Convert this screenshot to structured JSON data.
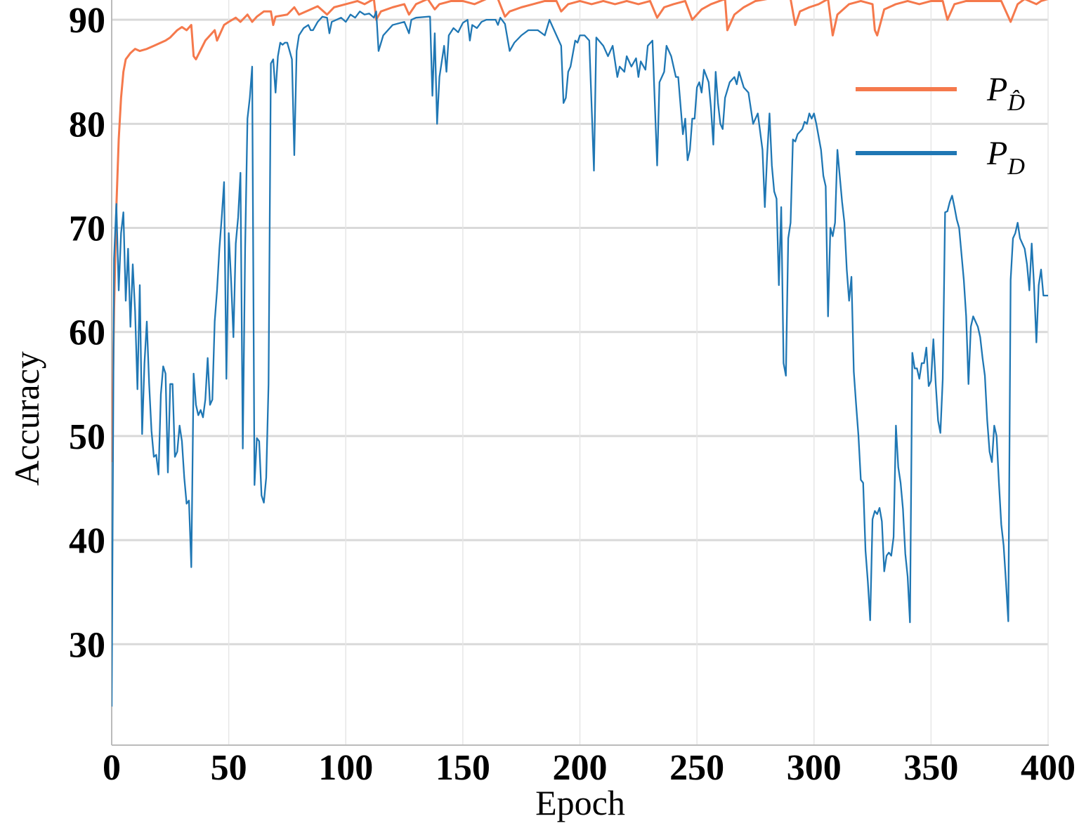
{
  "chart_data": {
    "type": "line",
    "x_label": "Epoch",
    "y_label": "Accuracy",
    "xlim": [
      0,
      400
    ],
    "ylim": [
      20.3,
      91.9
    ],
    "xticks": [
      0,
      50,
      100,
      150,
      200,
      250,
      300,
      350,
      400
    ],
    "yticks": [
      30,
      40,
      50,
      60,
      70,
      80,
      90
    ],
    "grid": true,
    "legend": "upper right",
    "series": [
      {
        "name": "PD̂",
        "color": "#f5794c",
        "x": [
          0,
          1,
          2,
          3,
          4,
          5,
          6,
          8,
          10,
          12,
          15,
          18,
          20,
          23,
          25,
          28,
          30,
          32,
          34,
          35,
          36,
          40,
          44,
          45,
          48,
          50,
          53,
          55,
          58,
          60,
          62,
          65,
          68,
          69,
          70,
          75,
          78,
          80,
          85,
          88,
          92,
          95,
          100,
          105,
          108,
          112,
          113,
          115,
          120,
          125,
          127,
          130,
          135,
          138,
          140,
          145,
          150,
          155,
          160,
          165,
          168,
          170,
          175,
          180,
          185,
          190,
          192,
          195,
          200,
          205,
          210,
          215,
          220,
          225,
          230,
          233,
          236,
          240,
          245,
          248,
          252,
          256,
          262,
          263,
          266,
          270,
          275,
          280,
          285,
          290,
          292,
          294,
          298,
          302,
          306,
          308,
          310,
          315,
          320,
          325,
          326,
          327,
          330,
          335,
          340,
          345,
          350,
          355,
          357,
          360,
          365,
          370,
          375,
          380,
          384,
          387,
          390,
          395,
          397,
          400
        ],
        "values": [
          47.5,
          62,
          72,
          78.5,
          82.5,
          85,
          86.2,
          86.8,
          87.2,
          87,
          87.2,
          87.5,
          87.7,
          88,
          88.3,
          89,
          89.3,
          89,
          89.5,
          86.5,
          86.2,
          88,
          89,
          88,
          89.5,
          89.8,
          90.2,
          89.8,
          90.5,
          89.8,
          90.3,
          90.8,
          90.8,
          89.5,
          90.3,
          90.5,
          91.2,
          90.5,
          91,
          91.3,
          90.5,
          91.2,
          91.5,
          91.8,
          91.5,
          92,
          90,
          90.8,
          91.2,
          91.5,
          90.5,
          91.5,
          92,
          91,
          91.5,
          91.8,
          91.8,
          91.5,
          92,
          92,
          90.3,
          90.8,
          91.2,
          91.5,
          91.8,
          91.8,
          90.8,
          91.5,
          91.8,
          91.5,
          91.8,
          91.5,
          91.8,
          91.5,
          91.8,
          90.2,
          91.2,
          91.5,
          91.8,
          90,
          91,
          91.5,
          92,
          89,
          90.5,
          91.2,
          91.8,
          92,
          92,
          92,
          89.5,
          90.8,
          91.2,
          91.5,
          92,
          88.5,
          90.5,
          91.5,
          91.8,
          91.5,
          89,
          88.5,
          91,
          91.5,
          91.8,
          91.5,
          91.8,
          91.8,
          90,
          91.5,
          91.8,
          91.8,
          91.8,
          91.8,
          89.8,
          91.5,
          92,
          91.5,
          91.8,
          92
        ]
      },
      {
        "name": "PD",
        "color": "#1f77b4",
        "x": [
          0,
          1,
          2,
          3,
          4,
          5,
          6,
          7,
          8,
          9,
          10,
          11,
          12,
          13,
          14,
          15,
          16,
          17,
          18,
          19,
          20,
          21,
          22,
          23,
          24,
          25,
          26,
          27,
          28,
          29,
          30,
          31,
          32,
          33,
          34,
          35,
          36,
          37,
          38,
          39,
          40,
          41,
          42,
          43,
          44,
          45,
          46,
          47,
          48,
          49,
          50,
          51,
          52,
          53,
          54,
          55,
          56,
          57,
          58,
          59,
          60,
          61,
          62,
          63,
          64,
          65,
          66,
          67,
          68,
          69,
          70,
          71,
          72,
          73,
          74,
          75,
          76,
          77,
          78,
          79,
          80,
          82,
          84,
          85,
          86,
          88,
          90,
          92,
          93,
          94,
          96,
          98,
          100,
          102,
          104,
          106,
          108,
          110,
          112,
          113,
          114,
          116,
          120,
          125,
          127,
          128,
          130,
          135,
          136,
          137,
          138,
          139,
          140,
          142,
          143,
          144,
          146,
          148,
          150,
          152,
          153,
          154,
          156,
          158,
          160,
          162,
          164,
          165,
          166,
          168,
          170,
          172,
          175,
          178,
          182,
          185,
          187,
          190,
          192,
          193,
          194,
          195,
          196,
          198,
          199,
          200,
          202,
          204,
          206,
          207,
          210,
          212,
          214,
          216,
          217,
          219,
          220,
          222,
          224,
          225,
          226,
          228,
          229,
          231,
          233,
          234,
          236,
          237,
          239,
          241,
          242,
          244,
          245,
          246,
          247,
          248,
          249,
          250,
          251,
          252,
          253,
          255,
          256,
          257,
          258,
          259,
          260,
          261,
          262,
          264,
          266,
          267,
          268,
          270,
          272,
          274,
          276,
          278,
          279,
          280,
          281,
          282,
          283,
          284,
          285,
          286,
          287,
          288,
          289,
          290,
          291,
          292,
          293,
          295,
          296,
          297,
          298,
          299,
          300,
          301,
          303,
          304,
          305,
          306,
          307,
          308,
          309,
          310,
          311,
          312,
          313,
          314,
          315,
          316,
          317,
          318,
          319,
          320,
          321,
          322,
          323,
          324,
          325,
          326,
          327,
          328,
          329,
          330,
          331,
          332,
          333,
          334,
          335,
          336,
          337,
          338,
          339,
          340,
          341,
          342,
          343,
          344,
          345,
          346,
          347,
          348,
          349,
          350,
          351,
          352,
          353,
          354,
          355,
          356,
          357,
          358,
          359,
          360,
          361,
          362,
          363,
          364,
          365,
          366,
          367,
          368,
          369,
          370,
          371,
          372,
          373,
          374,
          375,
          376,
          377,
          378,
          379,
          380,
          381,
          382,
          383,
          384,
          385,
          386,
          387,
          388,
          389,
          390,
          391,
          392,
          393,
          394,
          395,
          396,
          397,
          398,
          400
        ],
        "values": [
          24,
          67,
          72.3,
          64,
          69.5,
          71.5,
          63,
          68,
          60.5,
          66.5,
          62,
          54.5,
          64.5,
          50.2,
          57,
          61,
          55,
          50.5,
          48,
          48.2,
          46.3,
          54,
          56.7,
          56,
          46.5,
          55,
          55,
          48,
          48.5,
          51,
          49.5,
          46,
          43.5,
          43.8,
          37.4,
          56,
          53,
          52,
          52.5,
          51.8,
          53.5,
          57.5,
          53,
          53.5,
          61,
          64,
          68,
          71,
          74.4,
          55.5,
          69.5,
          65,
          59.5,
          68.5,
          71,
          75.3,
          48.8,
          68,
          80.5,
          82.5,
          85.5,
          45.3,
          49.8,
          49.5,
          44.3,
          43.6,
          46,
          55,
          85.8,
          86.2,
          83,
          86.5,
          87.8,
          87.6,
          87.8,
          87.8,
          87,
          86.2,
          77,
          87,
          88.5,
          89.2,
          89.5,
          89,
          89,
          89.8,
          90.3,
          90.2,
          88.7,
          89.8,
          90,
          90.2,
          89.8,
          90.5,
          90.2,
          90.8,
          90.5,
          90.6,
          90.2,
          90.8,
          87,
          88.5,
          89.5,
          89.8,
          88.7,
          90,
          90.2,
          90.3,
          90.3,
          82.7,
          88.7,
          80,
          84.5,
          87.5,
          85,
          88.5,
          89.2,
          88.8,
          89.7,
          90,
          88,
          89.5,
          89.2,
          89.8,
          90,
          90,
          90,
          89.5,
          90.2,
          89.6,
          87,
          87.8,
          88.5,
          89,
          89,
          88.5,
          90,
          88.5,
          87.5,
          82,
          82.5,
          85,
          85.5,
          88,
          87.8,
          88.5,
          88.5,
          88,
          75.5,
          88.3,
          87.5,
          86.5,
          87.5,
          84.5,
          85.5,
          85,
          86.5,
          85.5,
          86.3,
          84.5,
          86,
          85.2,
          87.5,
          88,
          76,
          84,
          85,
          87.5,
          86.5,
          84.5,
          84.5,
          79,
          80.5,
          76.5,
          77.5,
          80.5,
          80.5,
          83.5,
          84,
          83,
          85.2,
          84,
          81.5,
          78,
          85,
          82,
          80,
          79.5,
          82.5,
          84,
          84.5,
          83.8,
          85,
          83.5,
          83,
          80,
          81,
          77.5,
          72,
          77,
          81,
          76,
          73.5,
          72.8,
          64.5,
          72,
          57,
          55.8,
          69,
          70.5,
          78.5,
          78.3,
          79,
          79.5,
          80.2,
          80,
          81,
          80.5,
          81,
          80,
          77.5,
          75,
          74,
          61.5,
          70,
          69.2,
          70.5,
          77.5,
          75,
          72.5,
          70.5,
          66,
          63,
          65.3,
          56.2,
          53,
          50,
          45.8,
          45.5,
          39,
          36,
          32.3,
          42,
          42.8,
          42.5,
          43.1,
          41.8,
          37,
          38.5,
          38.8,
          38.5,
          40.3,
          51,
          47,
          45.5,
          43,
          38.7,
          36.5,
          32.1,
          58,
          56.5,
          56.5,
          55.5,
          57,
          57,
          58.5,
          54.8,
          55.3,
          59.3,
          55,
          51.5,
          50.3,
          55.5,
          71.5,
          71.6,
          72.5,
          73.1,
          72,
          70.8,
          70,
          67.5,
          65,
          61.5,
          55,
          60.5,
          61.5,
          61,
          60.5,
          59.5,
          57.5,
          55.8,
          51.5,
          48.5,
          47.5,
          51,
          50,
          45.5,
          41.5,
          39.5,
          36,
          32.2,
          65,
          69,
          69.5,
          70.5,
          69,
          68.5,
          68,
          66.5,
          64,
          68.5,
          64.5,
          59,
          64.5,
          66,
          63.5,
          63.5
        ]
      }
    ]
  }
}
